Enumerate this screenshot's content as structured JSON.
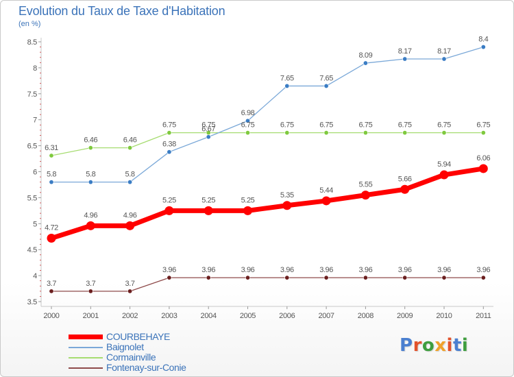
{
  "title": "Evolution du Taux de Taxe d'Habitation",
  "subtitle": "(en %)",
  "brand": {
    "text": "Proxiti",
    "colors": [
      "#4a7fd0",
      "#e2522c",
      "#3f9e3f",
      "#f0a22a",
      "#e2522c",
      "#4a7fd0",
      "#3f9e3f"
    ]
  },
  "chart_data": {
    "type": "line",
    "title": "Evolution du Taux de Taxe d'Habitation",
    "subtitle": "(en %)",
    "x": [
      "2000",
      "2001",
      "2002",
      "2003",
      "2004",
      "2005",
      "2006",
      "2007",
      "2008",
      "2009",
      "2010",
      "2011"
    ],
    "ylim": [
      3.5,
      8.5
    ],
    "yticks": [
      "3.5",
      "4",
      "4.5",
      "5",
      "5.5",
      "6",
      "6.5",
      "7",
      "7.5",
      "8",
      "8.5"
    ],
    "grid": false,
    "legend_position": "bottom-left",
    "series": [
      {
        "name": "COURBEHAYE",
        "color": "#ff0000",
        "values": [
          4.72,
          4.96,
          4.96,
          5.25,
          5.25,
          5.25,
          5.35,
          5.44,
          5.55,
          5.66,
          5.94,
          6.06
        ],
        "labels": [
          "4.72",
          "4.96",
          "4.96",
          "5.25",
          "5.25",
          "5.25",
          "5.35",
          "5.44",
          "5.55",
          "5.66",
          "5.94",
          "6.06"
        ]
      },
      {
        "name": "Baignolet",
        "color": "#5b9bd5",
        "values": [
          5.8,
          5.8,
          5.8,
          6.38,
          6.67,
          6.98,
          7.65,
          7.65,
          8.09,
          8.17,
          8.17,
          8.4
        ],
        "labels": [
          "5.8",
          "5.8",
          "5.8",
          "6.38",
          "6.67",
          "6.98",
          "7.65",
          "7.65",
          "8.09",
          "8.17",
          "8.17",
          "8.4"
        ]
      },
      {
        "name": "Cormainville",
        "color": "#92d050",
        "values": [
          6.31,
          6.46,
          6.46,
          6.75,
          6.75,
          6.75,
          6.75,
          6.75,
          6.75,
          6.75,
          6.75,
          6.75
        ],
        "labels": [
          "6.31",
          "6.46",
          "6.46",
          "6.75",
          "6.75",
          "6.75",
          "6.75",
          "6.75",
          "6.75",
          "6.75",
          "6.75",
          "6.75"
        ]
      },
      {
        "name": "Fontenay-sur-Conie",
        "color": "#7b2c2c",
        "values": [
          3.7,
          3.7,
          3.7,
          3.96,
          3.96,
          3.96,
          3.96,
          3.96,
          3.96,
          3.96,
          3.96,
          3.96
        ],
        "labels": [
          "3.7",
          "3.7",
          "3.7",
          "3.96",
          "3.96",
          "3.96",
          "3.96",
          "3.96",
          "3.96",
          "3.96",
          "3.96",
          "3.96"
        ]
      }
    ]
  }
}
